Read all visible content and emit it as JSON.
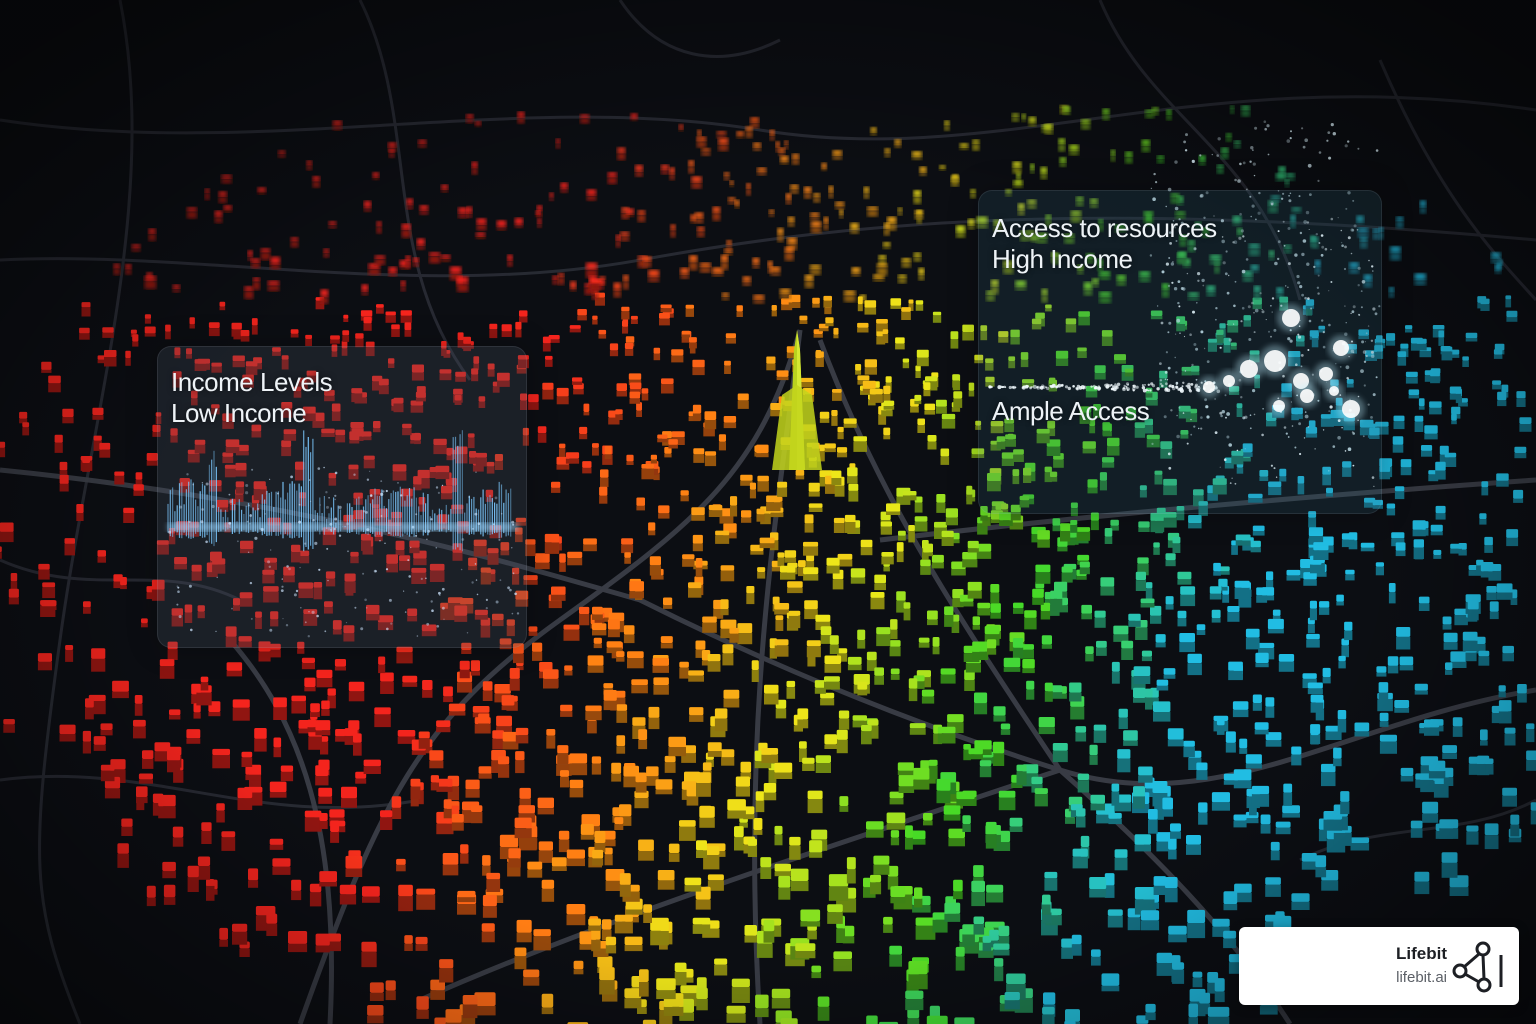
{
  "panels": {
    "income": {
      "line1": "Income Levels",
      "line2": "Low Income"
    },
    "access": {
      "line1": "Access to resources",
      "line2": "High Income",
      "line3": "Ample Access"
    }
  },
  "logo": {
    "name": "Lifebit",
    "url": "lifebit.ai",
    "icon": "network-nodes-icon"
  },
  "legend_colors": {
    "low_income": "#e8221c",
    "lower_middle": "#f47c12",
    "middle": "#e3dc18",
    "upper_middle": "#43d024",
    "high_income": "#1fb4d8"
  }
}
